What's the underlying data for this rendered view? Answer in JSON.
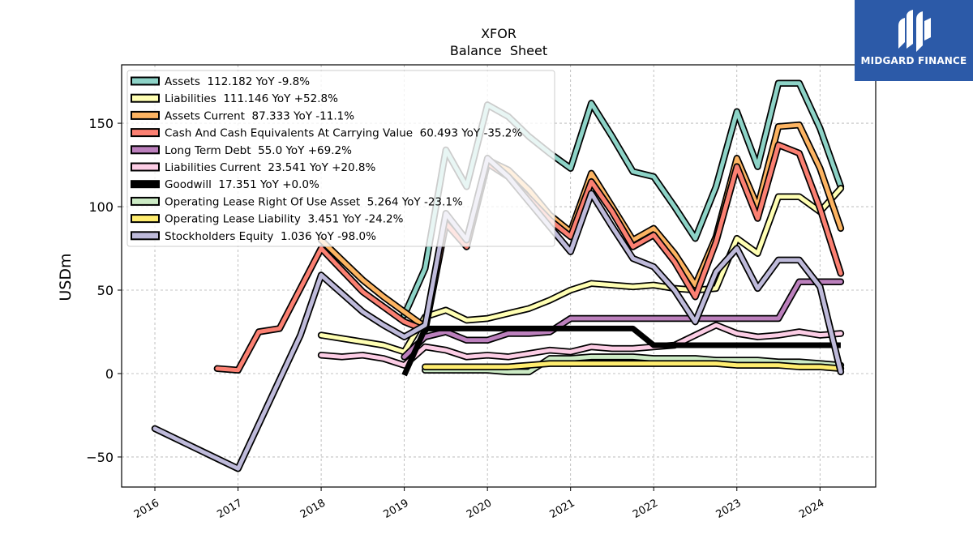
{
  "chart_data": {
    "type": "line",
    "title": "XFOR",
    "subtitle": "Balance  Sheet",
    "ylabel": "USDm",
    "xlabel": "",
    "x_tick_labels": [
      "2016",
      "2017",
      "2018",
      "2019",
      "2020",
      "2021",
      "2022",
      "2023",
      "2024"
    ],
    "y_tick_labels": [
      "−50",
      "0",
      "50",
      "100",
      "150"
    ],
    "xlim": [
      2015.6,
      2024.67
    ],
    "ylim": [
      -68,
      185
    ],
    "grid": true,
    "legend_position": "top-left",
    "series": [
      {
        "name": "Assets  112.182 YoY -9.8%",
        "color": "#8dd3c7",
        "width": 5,
        "points": [
          [
            2019.0,
            35
          ],
          [
            2019.25,
            63
          ],
          [
            2019.5,
            134
          ],
          [
            2019.75,
            112
          ],
          [
            2020.0,
            161
          ],
          [
            2020.25,
            154
          ],
          [
            2020.5,
            142
          ],
          [
            2020.75,
            132
          ],
          [
            2021.0,
            123
          ],
          [
            2021.25,
            162
          ],
          [
            2021.5,
            142
          ],
          [
            2021.75,
            121
          ],
          [
            2022.0,
            118
          ],
          [
            2022.25,
            100
          ],
          [
            2022.5,
            81
          ],
          [
            2022.75,
            112
          ],
          [
            2023.0,
            157
          ],
          [
            2023.25,
            124
          ],
          [
            2023.5,
            174
          ],
          [
            2023.75,
            174
          ],
          [
            2024.0,
            147
          ],
          [
            2024.25,
            112
          ]
        ]
      },
      {
        "name": "Liabilities  111.146 YoY +52.8%",
        "color": "#ffffb3",
        "width": 5,
        "points": [
          [
            2018.0,
            23
          ],
          [
            2018.25,
            21
          ],
          [
            2018.5,
            19
          ],
          [
            2018.75,
            17
          ],
          [
            2019.0,
            13
          ],
          [
            2019.25,
            34
          ],
          [
            2019.5,
            38
          ],
          [
            2019.75,
            32
          ],
          [
            2020.0,
            33
          ],
          [
            2020.25,
            36
          ],
          [
            2020.5,
            39
          ],
          [
            2020.75,
            44
          ],
          [
            2021.0,
            50
          ],
          [
            2021.25,
            54
          ],
          [
            2021.5,
            53
          ],
          [
            2021.75,
            52
          ],
          [
            2022.0,
            53
          ],
          [
            2022.25,
            51
          ],
          [
            2022.5,
            50
          ],
          [
            2022.75,
            51
          ],
          [
            2023.0,
            81
          ],
          [
            2023.25,
            72
          ],
          [
            2023.5,
            106
          ],
          [
            2023.75,
            106
          ],
          [
            2024.0,
            97
          ],
          [
            2024.25,
            111
          ]
        ]
      },
      {
        "name": "Assets Current  87.333 YoY -11.1%",
        "color": "#fdb462",
        "width": 5,
        "points": [
          [
            2018.0,
            80
          ],
          [
            2018.25,
            68
          ],
          [
            2018.5,
            56
          ],
          [
            2018.75,
            46
          ],
          [
            2019.0,
            37
          ],
          [
            2019.25,
            28
          ],
          [
            2019.5,
            95
          ],
          [
            2019.75,
            80
          ],
          [
            2020.0,
            128
          ],
          [
            2020.25,
            122
          ],
          [
            2020.5,
            110
          ],
          [
            2020.75,
            95
          ],
          [
            2021.0,
            85
          ],
          [
            2021.25,
            120
          ],
          [
            2021.5,
            100
          ],
          [
            2021.75,
            80
          ],
          [
            2022.0,
            87
          ],
          [
            2022.25,
            72
          ],
          [
            2022.5,
            53
          ],
          [
            2022.75,
            82
          ],
          [
            2023.0,
            129
          ],
          [
            2023.25,
            100
          ],
          [
            2023.5,
            148
          ],
          [
            2023.75,
            149
          ],
          [
            2024.0,
            123
          ],
          [
            2024.25,
            87
          ]
        ]
      },
      {
        "name": "Cash And Cash Equivalents At Carrying Value  60.493 YoY -35.2%",
        "color": "#fb8072",
        "width": 5,
        "points": [
          [
            2016.75,
            3
          ],
          [
            2017.0,
            2
          ],
          [
            2017.25,
            25
          ],
          [
            2017.5,
            27
          ],
          [
            2018.0,
            75
          ],
          [
            2018.25,
            62
          ],
          [
            2018.5,
            49
          ],
          [
            2018.75,
            40
          ],
          [
            2019.0,
            31
          ],
          [
            2019.25,
            26
          ],
          [
            2019.5,
            90
          ],
          [
            2019.75,
            76
          ],
          [
            2020.0,
            126
          ],
          [
            2020.25,
            118
          ],
          [
            2020.5,
            105
          ],
          [
            2020.75,
            92
          ],
          [
            2021.0,
            82
          ],
          [
            2021.25,
            115
          ],
          [
            2021.5,
            97
          ],
          [
            2021.75,
            76
          ],
          [
            2022.0,
            83
          ],
          [
            2022.25,
            67
          ],
          [
            2022.5,
            46
          ],
          [
            2022.75,
            79
          ],
          [
            2023.0,
            124
          ],
          [
            2023.25,
            93
          ],
          [
            2023.5,
            137
          ],
          [
            2023.75,
            132
          ],
          [
            2024.0,
            99
          ],
          [
            2024.25,
            60
          ]
        ]
      },
      {
        "name": "Long Term Debt  55.0 YoY +69.2%",
        "color": "#bc80bd",
        "width": 5,
        "points": [
          [
            2019.0,
            10
          ],
          [
            2019.25,
            22
          ],
          [
            2019.5,
            25
          ],
          [
            2019.75,
            20
          ],
          [
            2020.0,
            20
          ],
          [
            2020.25,
            24
          ],
          [
            2020.5,
            24
          ],
          [
            2020.75,
            25
          ],
          [
            2021.0,
            33
          ],
          [
            2021.25,
            33
          ],
          [
            2021.5,
            33
          ],
          [
            2021.75,
            33
          ],
          [
            2022.0,
            33
          ],
          [
            2022.25,
            33
          ],
          [
            2022.5,
            33
          ],
          [
            2022.75,
            33
          ],
          [
            2023.0,
            33
          ],
          [
            2023.25,
            33
          ],
          [
            2023.5,
            33
          ],
          [
            2023.75,
            55
          ],
          [
            2024.0,
            55
          ],
          [
            2024.25,
            55
          ]
        ]
      },
      {
        "name": "Liabilities Current  23.541 YoY +20.8%",
        "color": "#fccde5",
        "width": 5,
        "points": [
          [
            2018.0,
            11
          ],
          [
            2018.25,
            10
          ],
          [
            2018.5,
            11
          ],
          [
            2018.75,
            9
          ],
          [
            2019.0,
            5
          ],
          [
            2019.25,
            16
          ],
          [
            2019.5,
            14
          ],
          [
            2019.75,
            10
          ],
          [
            2020.0,
            11
          ],
          [
            2020.25,
            10
          ],
          [
            2020.5,
            12
          ],
          [
            2020.75,
            14
          ],
          [
            2021.0,
            13
          ],
          [
            2021.25,
            16
          ],
          [
            2021.5,
            15
          ],
          [
            2021.75,
            15
          ],
          [
            2022.0,
            16
          ],
          [
            2022.25,
            17
          ],
          [
            2022.5,
            23
          ],
          [
            2022.75,
            29
          ],
          [
            2023.0,
            24
          ],
          [
            2023.25,
            22
          ],
          [
            2023.5,
            23
          ],
          [
            2023.75,
            25
          ],
          [
            2024.0,
            23
          ],
          [
            2024.25,
            24
          ]
        ]
      },
      {
        "name": "Goodwill  17.351 YoY +0.0%",
        "color": "#000000",
        "width": 7,
        "points": [
          [
            2019.0,
            -1
          ],
          [
            2019.25,
            27
          ],
          [
            2019.5,
            27
          ],
          [
            2019.75,
            27
          ],
          [
            2020.0,
            27
          ],
          [
            2020.25,
            27
          ],
          [
            2020.5,
            27
          ],
          [
            2020.75,
            27
          ],
          [
            2021.0,
            27
          ],
          [
            2021.25,
            27
          ],
          [
            2021.5,
            27
          ],
          [
            2021.75,
            27
          ],
          [
            2022.0,
            17
          ],
          [
            2022.25,
            17
          ],
          [
            2022.5,
            17
          ],
          [
            2022.75,
            17
          ],
          [
            2023.0,
            17
          ],
          [
            2023.25,
            17
          ],
          [
            2023.5,
            17
          ],
          [
            2023.75,
            17
          ],
          [
            2024.0,
            17
          ],
          [
            2024.25,
            17
          ]
        ]
      },
      {
        "name": "Operating Lease Right Of Use Asset  5.264 YoY -23.1%",
        "color": "#ccebc5",
        "width": 5,
        "points": [
          [
            2019.25,
            2
          ],
          [
            2019.5,
            2
          ],
          [
            2019.75,
            2
          ],
          [
            2020.0,
            2
          ],
          [
            2020.25,
            1
          ],
          [
            2020.5,
            1
          ],
          [
            2020.75,
            9
          ],
          [
            2021.0,
            9
          ],
          [
            2021.25,
            10
          ],
          [
            2021.5,
            10
          ],
          [
            2021.75,
            10
          ],
          [
            2022.0,
            9
          ],
          [
            2022.25,
            9
          ],
          [
            2022.5,
            9
          ],
          [
            2022.75,
            8
          ],
          [
            2023.0,
            8
          ],
          [
            2023.25,
            8
          ],
          [
            2023.5,
            7
          ],
          [
            2023.75,
            7
          ],
          [
            2024.0,
            6
          ],
          [
            2024.25,
            5
          ]
        ]
      },
      {
        "name": "Operating Lease Liability  3.451 YoY -24.2%",
        "color": "#ffed6f",
        "width": 5,
        "points": [
          [
            2019.25,
            4
          ],
          [
            2019.5,
            4
          ],
          [
            2019.75,
            4
          ],
          [
            2020.0,
            4
          ],
          [
            2020.25,
            4
          ],
          [
            2020.5,
            5
          ],
          [
            2020.75,
            6
          ],
          [
            2021.0,
            6
          ],
          [
            2021.25,
            6
          ],
          [
            2021.5,
            6
          ],
          [
            2021.75,
            6
          ],
          [
            2022.0,
            6
          ],
          [
            2022.25,
            6
          ],
          [
            2022.5,
            6
          ],
          [
            2022.75,
            6
          ],
          [
            2023.0,
            5
          ],
          [
            2023.25,
            5
          ],
          [
            2023.5,
            5
          ],
          [
            2023.75,
            4
          ],
          [
            2024.0,
            4
          ],
          [
            2024.25,
            3
          ]
        ]
      },
      {
        "name": "Stockholders Equity  1.036 YoY -98.0%",
        "color": "#bebada",
        "width": 5,
        "points": [
          [
            2016.0,
            -33
          ],
          [
            2017.0,
            -57
          ],
          [
            2017.75,
            23
          ],
          [
            2018.0,
            59
          ],
          [
            2018.25,
            48
          ],
          [
            2018.5,
            37
          ],
          [
            2018.75,
            29
          ],
          [
            2019.0,
            22
          ],
          [
            2019.25,
            29
          ],
          [
            2019.5,
            96
          ],
          [
            2019.75,
            80
          ],
          [
            2020.0,
            129
          ],
          [
            2020.25,
            118
          ],
          [
            2020.5,
            103
          ],
          [
            2020.75,
            88
          ],
          [
            2021.0,
            73
          ],
          [
            2021.25,
            108
          ],
          [
            2021.5,
            88
          ],
          [
            2021.75,
            69
          ],
          [
            2022.0,
            64
          ],
          [
            2022.25,
            50
          ],
          [
            2022.5,
            31
          ],
          [
            2022.75,
            61
          ],
          [
            2023.0,
            75
          ],
          [
            2023.25,
            51
          ],
          [
            2023.5,
            68
          ],
          [
            2023.75,
            68
          ],
          [
            2024.0,
            52
          ],
          [
            2024.25,
            1
          ]
        ]
      }
    ]
  },
  "brand": {
    "name": "MIDGARD FINANCE",
    "logo_icon": "midgard-logo-icon",
    "background": "#2c5aa8"
  }
}
